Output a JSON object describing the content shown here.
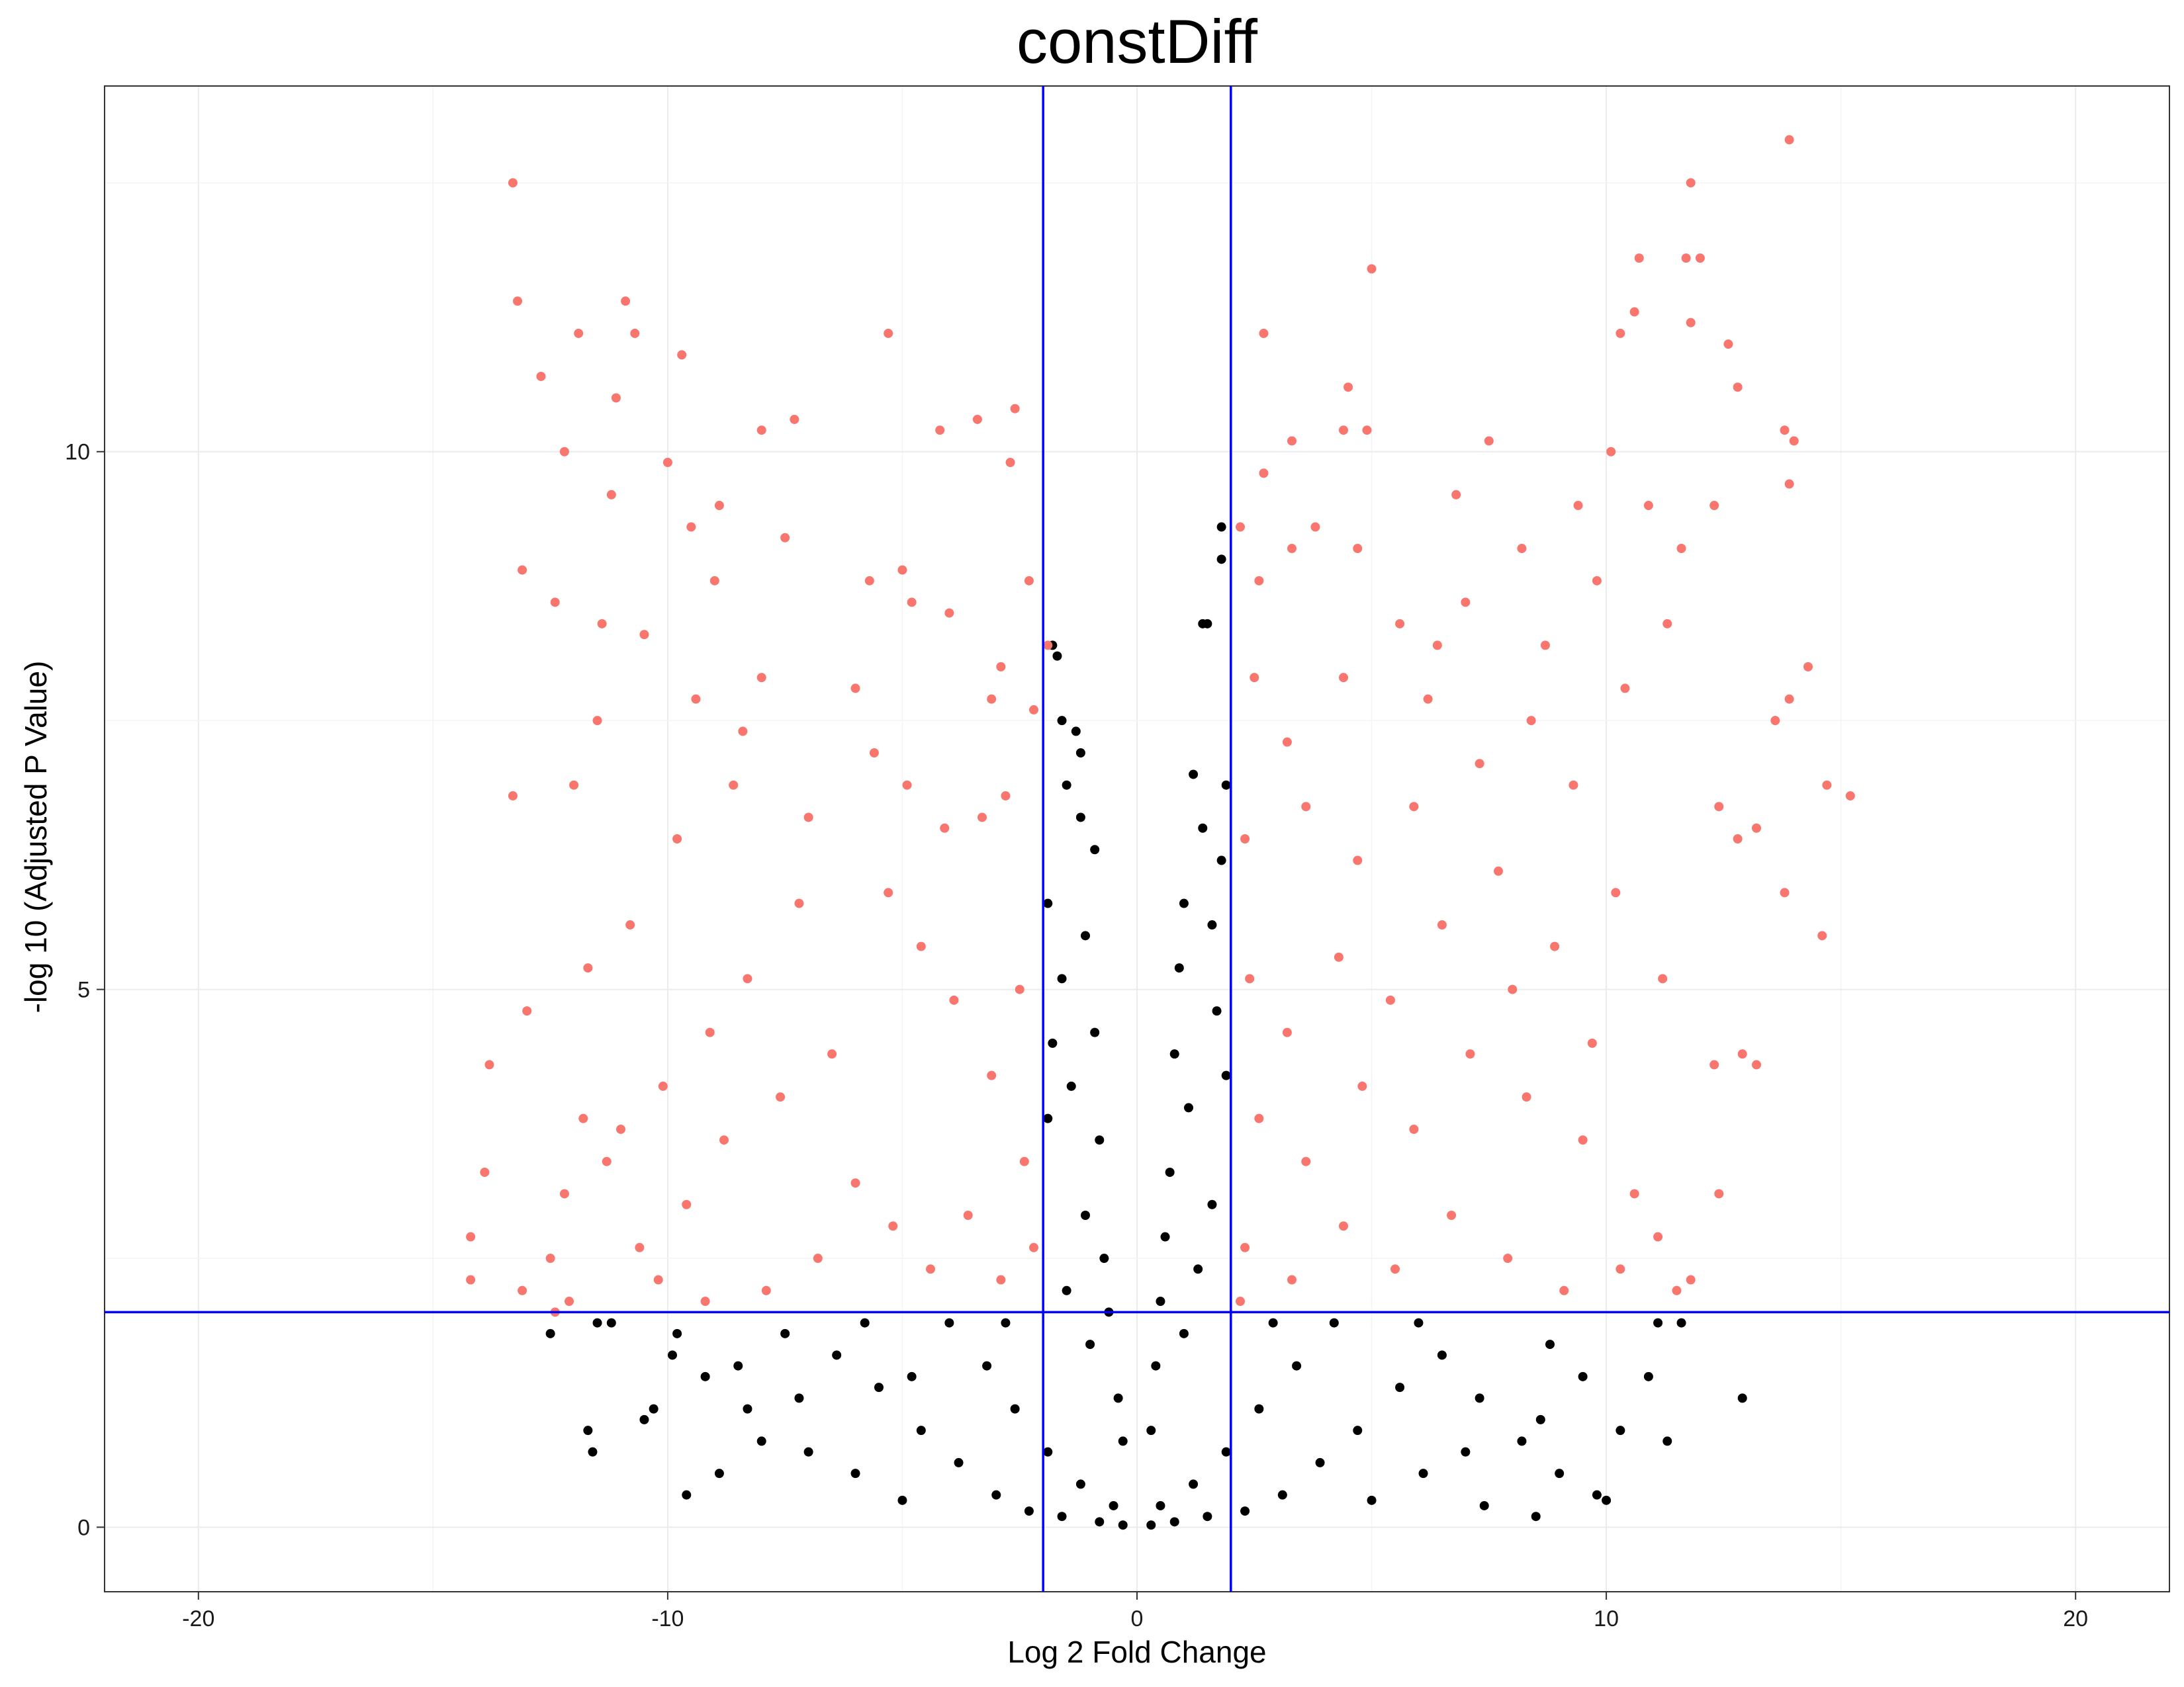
{
  "chart_data": {
    "type": "scatter",
    "title": "constDiff",
    "xlabel": "Log 2 Fold Change",
    "ylabel": "-log 10 (Adjusted P Value)",
    "xlim": [
      -22,
      22
    ],
    "ylim": [
      -0.6,
      13.4
    ],
    "x_ticks": [
      -20,
      -10,
      0,
      10,
      20
    ],
    "x_tick_labels": [
      "-20",
      "-10",
      "0",
      "10",
      "20"
    ],
    "y_ticks": [
      0,
      5,
      10
    ],
    "y_tick_labels": [
      "0",
      "5",
      "10"
    ],
    "grid": true,
    "legend": "none",
    "threshold_lines": {
      "vertical_x": [
        -2,
        2
      ],
      "horizontal_y": 2,
      "color": "#0000ff"
    },
    "colors": {
      "significant": "#f8766d",
      "not_significant": "#000000"
    },
    "series": [
      {
        "color": "#f8766d",
        "points": [
          [
            -13.3,
            12.5
          ],
          [
            -13.2,
            11.4
          ],
          [
            -11.9,
            11.1
          ],
          [
            -10.9,
            11.4
          ],
          [
            -10.7,
            11.1
          ],
          [
            -9.7,
            10.9
          ],
          [
            -5.3,
            11.1
          ],
          [
            -4.2,
            10.2
          ],
          [
            -3.4,
            10.3
          ],
          [
            -2.6,
            10.4
          ],
          [
            -2.7,
            9.9
          ],
          [
            -12.7,
            10.7
          ],
          [
            -12.2,
            10.0
          ],
          [
            -11.1,
            10.5
          ],
          [
            -8.0,
            10.2
          ],
          [
            -7.3,
            10.3
          ],
          [
            -13.1,
            8.9
          ],
          [
            -13.3,
            6.8
          ],
          [
            -13.0,
            4.8
          ],
          [
            -13.8,
            4.3
          ],
          [
            -13.9,
            3.3
          ],
          [
            -14.2,
            2.7
          ],
          [
            -14.2,
            2.3
          ],
          [
            -13.1,
            2.2
          ],
          [
            -12.2,
            3.1
          ],
          [
            -12.1,
            2.1
          ],
          [
            -11.8,
            3.8
          ],
          [
            -12.5,
            2.5
          ],
          [
            -12.4,
            2.0
          ],
          [
            -11.3,
            3.4
          ],
          [
            -4.0,
            8.5
          ],
          [
            -4.8,
            8.6
          ],
          [
            -5.0,
            8.9
          ],
          [
            -5.7,
            8.8
          ],
          [
            -3.1,
            7.7
          ],
          [
            -6.0,
            7.8
          ],
          [
            -2.3,
            8.8
          ],
          [
            -1.9,
            8.2
          ],
          [
            -2.9,
            8.0
          ],
          [
            -2.2,
            7.6
          ],
          [
            -2.8,
            6.8
          ],
          [
            -3.3,
            6.6
          ],
          [
            -4.1,
            6.5
          ],
          [
            -4.9,
            6.9
          ],
          [
            -5.6,
            7.2
          ],
          [
            -9.0,
            8.8
          ],
          [
            -8.0,
            7.9
          ],
          [
            -9.5,
            9.3
          ],
          [
            -10.5,
            8.3
          ],
          [
            -11.4,
            8.4
          ],
          [
            -7.5,
            9.2
          ],
          [
            -8.6,
            6.9
          ],
          [
            -9.8,
            6.4
          ],
          [
            -10.8,
            5.6
          ],
          [
            -11.7,
            5.2
          ],
          [
            -7.2,
            5.8
          ],
          [
            -8.3,
            5.1
          ],
          [
            -9.1,
            4.6
          ],
          [
            -10.1,
            4.1
          ],
          [
            -11.0,
            3.7
          ],
          [
            -6.5,
            4.4
          ],
          [
            -7.6,
            4.0
          ],
          [
            -8.8,
            3.6
          ],
          [
            -9.6,
            3.0
          ],
          [
            -10.6,
            2.6
          ],
          [
            -6.0,
            3.2
          ],
          [
            -5.2,
            2.8
          ],
          [
            -4.4,
            2.4
          ],
          [
            -3.6,
            2.9
          ],
          [
            -2.9,
            2.3
          ],
          [
            -2.4,
            3.4
          ],
          [
            -3.1,
            4.2
          ],
          [
            -3.9,
            4.9
          ],
          [
            -4.6,
            5.4
          ],
          [
            -5.3,
            5.9
          ],
          [
            -2.5,
            5.0
          ],
          [
            -2.2,
            2.6
          ],
          [
            -6.8,
            2.5
          ],
          [
            -7.9,
            2.2
          ],
          [
            -9.2,
            2.1
          ],
          [
            -10.2,
            2.3
          ],
          [
            -8.4,
            7.4
          ],
          [
            -7.0,
            6.6
          ],
          [
            -9.4,
            7.7
          ],
          [
            -12.0,
            6.9
          ],
          [
            -11.5,
            7.5
          ],
          [
            -12.4,
            8.6
          ],
          [
            -11.2,
            9.6
          ],
          [
            -10.0,
            9.9
          ],
          [
            -8.9,
            9.5
          ],
          [
            13.9,
            12.9
          ],
          [
            11.8,
            12.5
          ],
          [
            11.7,
            11.8
          ],
          [
            12.0,
            11.8
          ],
          [
            10.7,
            11.8
          ],
          [
            5.0,
            11.7
          ],
          [
            10.6,
            11.3
          ],
          [
            10.3,
            11.1
          ],
          [
            2.7,
            11.1
          ],
          [
            12.6,
            11.0
          ],
          [
            11.8,
            11.2
          ],
          [
            12.8,
            10.6
          ],
          [
            4.5,
            10.6
          ],
          [
            4.4,
            10.2
          ],
          [
            4.9,
            10.2
          ],
          [
            3.3,
            10.1
          ],
          [
            14.0,
            10.1
          ],
          [
            13.8,
            10.2
          ],
          [
            13.9,
            9.7
          ],
          [
            14.3,
            8.0
          ],
          [
            13.9,
            7.7
          ],
          [
            13.6,
            7.5
          ],
          [
            15.2,
            6.8
          ],
          [
            14.7,
            6.9
          ],
          [
            14.6,
            5.5
          ],
          [
            13.8,
            5.9
          ],
          [
            13.2,
            6.5
          ],
          [
            12.4,
            6.7
          ],
          [
            12.8,
            6.4
          ],
          [
            13.2,
            4.3
          ],
          [
            12.9,
            4.4
          ],
          [
            12.3,
            4.3
          ],
          [
            12.4,
            3.1
          ],
          [
            11.8,
            2.3
          ],
          [
            11.5,
            2.2
          ],
          [
            2.7,
            9.8
          ],
          [
            2.2,
            9.3
          ],
          [
            2.6,
            8.8
          ],
          [
            3.3,
            9.1
          ],
          [
            3.8,
            9.3
          ],
          [
            4.7,
            9.1
          ],
          [
            2.5,
            7.9
          ],
          [
            3.2,
            7.3
          ],
          [
            4.4,
            7.9
          ],
          [
            5.6,
            8.4
          ],
          [
            6.4,
            8.2
          ],
          [
            2.3,
            6.4
          ],
          [
            3.6,
            6.7
          ],
          [
            4.7,
            6.2
          ],
          [
            5.9,
            6.7
          ],
          [
            7.3,
            7.1
          ],
          [
            8.4,
            7.5
          ],
          [
            9.3,
            6.9
          ],
          [
            10.4,
            7.8
          ],
          [
            11.3,
            8.4
          ],
          [
            8.2,
            9.1
          ],
          [
            9.4,
            9.5
          ],
          [
            10.1,
            10.0
          ],
          [
            7.5,
            10.1
          ],
          [
            6.8,
            9.6
          ],
          [
            2.4,
            5.1
          ],
          [
            3.2,
            4.6
          ],
          [
            4.3,
            5.3
          ],
          [
            5.4,
            4.9
          ],
          [
            6.5,
            5.6
          ],
          [
            7.7,
            6.1
          ],
          [
            8.9,
            5.4
          ],
          [
            10.2,
            5.9
          ],
          [
            11.2,
            5.1
          ],
          [
            2.6,
            3.8
          ],
          [
            3.6,
            3.4
          ],
          [
            4.8,
            4.1
          ],
          [
            5.9,
            3.7
          ],
          [
            7.1,
            4.4
          ],
          [
            8.3,
            4.0
          ],
          [
            9.5,
            3.6
          ],
          [
            10.6,
            3.1
          ],
          [
            2.3,
            2.6
          ],
          [
            3.3,
            2.3
          ],
          [
            4.4,
            2.8
          ],
          [
            5.5,
            2.4
          ],
          [
            6.7,
            2.9
          ],
          [
            7.9,
            2.5
          ],
          [
            9.1,
            2.2
          ],
          [
            10.3,
            2.4
          ],
          [
            11.1,
            2.7
          ],
          [
            2.2,
            2.1
          ],
          [
            6.2,
            7.7
          ],
          [
            7.0,
            8.6
          ],
          [
            8.7,
            8.2
          ],
          [
            9.8,
            8.8
          ],
          [
            10.9,
            9.5
          ],
          [
            11.6,
            9.1
          ],
          [
            12.3,
            9.5
          ],
          [
            8.0,
            5.0
          ],
          [
            9.7,
            4.5
          ]
        ]
      },
      {
        "color": "#000000",
        "points": [
          [
            1.8,
            9.3
          ],
          [
            1.8,
            9.0
          ],
          [
            1.5,
            8.4
          ],
          [
            1.4,
            8.4
          ],
          [
            -1.8,
            8.2
          ],
          [
            -1.7,
            8.1
          ],
          [
            -1.6,
            7.5
          ],
          [
            -1.3,
            7.4
          ],
          [
            -1.2,
            7.2
          ],
          [
            -1.5,
            6.9
          ],
          [
            1.2,
            7.0
          ],
          [
            1.9,
            6.9
          ],
          [
            -1.2,
            6.6
          ],
          [
            -0.9,
            6.3
          ],
          [
            1.4,
            6.5
          ],
          [
            1.8,
            6.2
          ],
          [
            1.6,
            5.6
          ],
          [
            -1.9,
            5.8
          ],
          [
            -1.1,
            5.5
          ],
          [
            1.0,
            5.8
          ],
          [
            0.9,
            5.2
          ],
          [
            -1.6,
            5.1
          ],
          [
            1.7,
            4.8
          ],
          [
            -0.9,
            4.6
          ],
          [
            0.8,
            4.4
          ],
          [
            -1.8,
            4.5
          ],
          [
            1.9,
            4.2
          ],
          [
            -1.4,
            4.1
          ],
          [
            1.1,
            3.9
          ],
          [
            -0.8,
            3.6
          ],
          [
            0.7,
            3.3
          ],
          [
            -1.9,
            3.8
          ],
          [
            1.6,
            3.0
          ],
          [
            -1.1,
            2.9
          ],
          [
            0.6,
            2.7
          ],
          [
            -0.7,
            2.5
          ],
          [
            1.3,
            2.4
          ],
          [
            -1.5,
            2.2
          ],
          [
            0.5,
            2.1
          ],
          [
            -0.6,
            2.0
          ],
          [
            -11.5,
            1.9
          ],
          [
            -11.2,
            1.9
          ],
          [
            -12.5,
            1.8
          ],
          [
            -9.8,
            1.8
          ],
          [
            -9.9,
            1.6
          ],
          [
            -9.2,
            1.4
          ],
          [
            -8.5,
            1.5
          ],
          [
            -10.3,
            1.1
          ],
          [
            -10.5,
            1.0
          ],
          [
            -11.7,
            0.9
          ],
          [
            -11.6,
            0.7
          ],
          [
            -9.6,
            0.3
          ],
          [
            -8.9,
            0.5
          ],
          [
            -8.0,
            0.8
          ],
          [
            -7.2,
            1.2
          ],
          [
            -6.4,
            1.6
          ],
          [
            -5.5,
            1.3
          ],
          [
            -4.6,
            0.9
          ],
          [
            -3.8,
            0.6
          ],
          [
            -3.0,
            0.3
          ],
          [
            -2.3,
            0.15
          ],
          [
            -1.6,
            0.1
          ],
          [
            -0.8,
            0.05
          ],
          [
            -0.3,
            0.02
          ],
          [
            -7.5,
            1.8
          ],
          [
            -6.0,
            0.5
          ],
          [
            -5.0,
            0.25
          ],
          [
            -4.0,
            1.9
          ],
          [
            -3.2,
            1.5
          ],
          [
            -2.6,
            1.1
          ],
          [
            -1.9,
            0.7
          ],
          [
            -1.2,
            0.4
          ],
          [
            -0.5,
            0.2
          ],
          [
            0.3,
            0.02
          ],
          [
            0.8,
            0.05
          ],
          [
            1.5,
            0.1
          ],
          [
            2.3,
            0.15
          ],
          [
            3.1,
            0.3
          ],
          [
            3.9,
            0.6
          ],
          [
            4.7,
            0.9
          ],
          [
            5.6,
            1.3
          ],
          [
            6.5,
            1.6
          ],
          [
            7.3,
            1.2
          ],
          [
            8.2,
            0.8
          ],
          [
            9.0,
            0.5
          ],
          [
            9.8,
            0.3
          ],
          [
            10.3,
            0.9
          ],
          [
            10.9,
            1.4
          ],
          [
            11.1,
            1.9
          ],
          [
            11.6,
            1.9
          ],
          [
            12.9,
            1.2
          ],
          [
            11.3,
            0.8
          ],
          [
            10.0,
            0.25
          ],
          [
            8.5,
            0.1
          ],
          [
            7.4,
            0.2
          ],
          [
            6.1,
            0.5
          ],
          [
            5.0,
            0.25
          ],
          [
            4.2,
            1.9
          ],
          [
            3.4,
            1.5
          ],
          [
            2.6,
            1.1
          ],
          [
            1.9,
            0.7
          ],
          [
            1.2,
            0.4
          ],
          [
            0.5,
            0.2
          ],
          [
            -0.4,
            1.2
          ],
          [
            0.4,
            1.5
          ],
          [
            -0.3,
            0.8
          ],
          [
            0.3,
            0.9
          ],
          [
            -1.0,
            1.7
          ],
          [
            1.0,
            1.8
          ],
          [
            -2.8,
            1.9
          ],
          [
            2.9,
            1.9
          ],
          [
            -5.8,
            1.9
          ],
          [
            6.0,
            1.9
          ],
          [
            8.8,
            1.7
          ],
          [
            9.5,
            1.4
          ],
          [
            -8.3,
            1.1
          ],
          [
            -7.0,
            0.7
          ],
          [
            7.0,
            0.7
          ],
          [
            8.6,
            1.0
          ],
          [
            -4.8,
            1.4
          ]
        ]
      }
    ]
  }
}
